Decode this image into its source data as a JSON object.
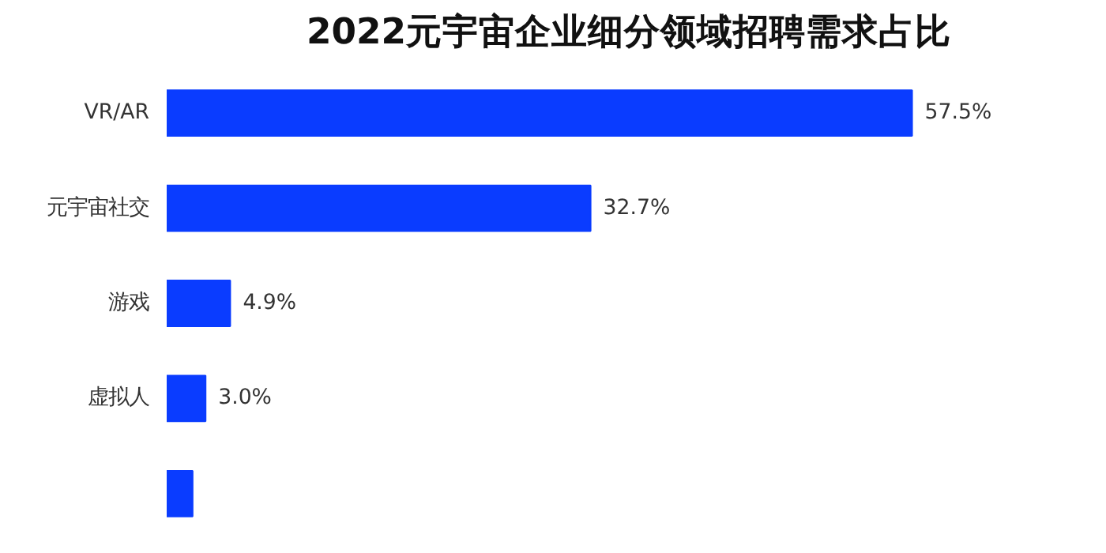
{
  "chart_data": {
    "type": "bar",
    "orientation": "horizontal",
    "title": "2022元宇宙企业细分领域招聘需求占比",
    "categories": [
      "VR/AR",
      "元宇宙社交",
      "游戏",
      "虚拟人",
      null
    ],
    "values": [
      57.5,
      32.7,
      4.9,
      3.0,
      2.0
    ],
    "value_labels": [
      "57.5%",
      "32.7%",
      "4.9%",
      "3.0%",
      null
    ],
    "color": "#0a3cff",
    "grid": false
  }
}
